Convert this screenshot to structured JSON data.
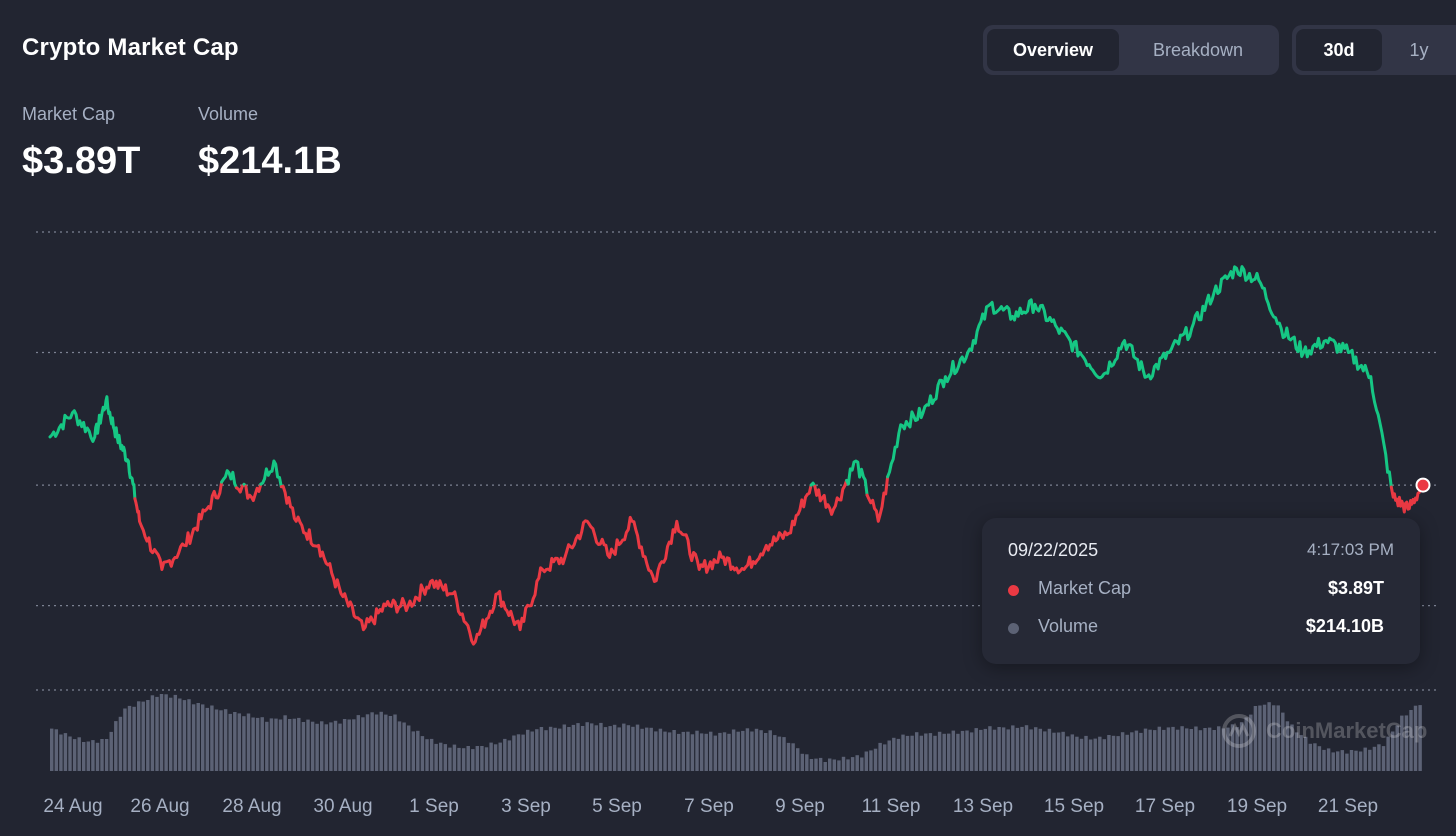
{
  "header": {
    "title": "Crypto Market Cap",
    "view_tabs": [
      "Overview",
      "Breakdown"
    ],
    "active_view": "Overview",
    "range_tabs": [
      "30d",
      "1y"
    ],
    "active_range": "30d"
  },
  "stats": {
    "market_cap_label": "Market Cap",
    "market_cap_value": "$3.89T",
    "volume_label": "Volume",
    "volume_value": "$214.1B"
  },
  "tooltip": {
    "date": "09/22/2025",
    "time": "4:17:03 PM",
    "rows": [
      {
        "name": "Market Cap",
        "value": "$3.89T",
        "color": "#ea3943"
      },
      {
        "name": "Volume",
        "value": "$214.10B",
        "color": "#5c6275"
      }
    ]
  },
  "watermark": "CoinMarketCap",
  "colors": {
    "up": "#16c784",
    "down": "#ea3943",
    "volume": "#5c6275",
    "background": "#222531"
  },
  "chart_data": {
    "type": "line",
    "x_ticks": [
      "24 Aug",
      "26 Aug",
      "28 Aug",
      "30 Aug",
      "1 Sep",
      "3 Sep",
      "5 Sep",
      "7 Sep",
      "9 Sep",
      "11 Sep",
      "13 Sep",
      "15 Sep",
      "17 Sep",
      "19 Sep",
      "21 Sep"
    ],
    "baseline_value": 3.89,
    "y_range": [
      3.72,
      4.1
    ],
    "grid": "dotted horizontal",
    "market_cap_series": {
      "x": [
        "2025-08-23",
        "2025-08-23 12:00",
        "2025-08-24",
        "2025-08-24 06:00",
        "2025-08-24 12:00",
        "2025-08-24 18:00",
        "2025-08-25",
        "2025-08-25 12:00",
        "2025-08-26",
        "2025-08-26 12:00",
        "2025-08-27",
        "2025-08-27 12:00",
        "2025-08-28",
        "2025-08-28 12:00",
        "2025-08-29",
        "2025-08-29 12:00",
        "2025-08-30",
        "2025-08-30 12:00",
        "2025-08-31",
        "2025-08-31 12:00",
        "2025-09-01",
        "2025-09-01 12:00",
        "2025-09-02",
        "2025-09-02 12:00",
        "2025-09-03",
        "2025-09-03 12:00",
        "2025-09-04",
        "2025-09-04 12:00",
        "2025-09-05",
        "2025-09-05 12:00",
        "2025-09-06",
        "2025-09-06 12:00",
        "2025-09-07",
        "2025-09-07 12:00",
        "2025-09-08",
        "2025-09-08 12:00",
        "2025-09-09",
        "2025-09-09 12:00",
        "2025-09-10",
        "2025-09-10 12:00",
        "2025-09-11",
        "2025-09-11 12:00",
        "2025-09-12",
        "2025-09-12 12:00",
        "2025-09-13",
        "2025-09-13 12:00",
        "2025-09-14",
        "2025-09-14 12:00",
        "2025-09-15",
        "2025-09-15 12:00",
        "2025-09-16",
        "2025-09-16 12:00",
        "2025-09-17",
        "2025-09-17 12:00",
        "2025-09-18",
        "2025-09-18 12:00",
        "2025-09-19",
        "2025-09-19 12:00",
        "2025-09-20",
        "2025-09-20 12:00",
        "2025-09-21",
        "2025-09-21 12:00",
        "2025-09-22",
        "2025-09-22 08:00",
        "2025-09-22 16:00"
      ],
      "values": [
        3.93,
        3.95,
        3.93,
        3.96,
        3.93,
        3.91,
        3.86,
        3.82,
        3.84,
        3.87,
        3.9,
        3.88,
        3.91,
        3.86,
        3.84,
        3.8,
        3.77,
        3.79,
        3.79,
        3.81,
        3.8,
        3.76,
        3.8,
        3.77,
        3.82,
        3.83,
        3.86,
        3.83,
        3.86,
        3.81,
        3.86,
        3.82,
        3.83,
        3.82,
        3.84,
        3.85,
        3.89,
        3.87,
        3.91,
        3.86,
        3.94,
        3.95,
        3.98,
        4.0,
        4.04,
        4.03,
        4.04,
        4.02,
        4.0,
        3.98,
        4.01,
        3.98,
        4.0,
        4.02,
        4.05,
        4.07,
        4.06,
        4.02,
        4.0,
        4.01,
        4.0,
        3.98,
        3.88,
        3.87,
        3.89
      ]
    },
    "volume_series": {
      "label": "Volume",
      "x_start": "2025-08-23",
      "x_end": "2025-09-22",
      "values": [
        0.55,
        0.45,
        0.38,
        0.4,
        0.8,
        0.9,
        1.0,
        0.96,
        0.88,
        0.82,
        0.76,
        0.72,
        0.66,
        0.7,
        0.66,
        0.62,
        0.64,
        0.7,
        0.76,
        0.72,
        0.55,
        0.4,
        0.33,
        0.3,
        0.32,
        0.38,
        0.48,
        0.55,
        0.56,
        0.6,
        0.62,
        0.58,
        0.6,
        0.56,
        0.52,
        0.5,
        0.5,
        0.48,
        0.52,
        0.54,
        0.5,
        0.38,
        0.18,
        0.14,
        0.16,
        0.2,
        0.34,
        0.44,
        0.48,
        0.48,
        0.5,
        0.52,
        0.56,
        0.56,
        0.58,
        0.54,
        0.5,
        0.44,
        0.42,
        0.46,
        0.5,
        0.54,
        0.56,
        0.56,
        0.55,
        0.56,
        0.6,
        0.86,
        0.88,
        0.54,
        0.36,
        0.26,
        0.25,
        0.28,
        0.35,
        0.7,
        0.88
      ]
    }
  }
}
